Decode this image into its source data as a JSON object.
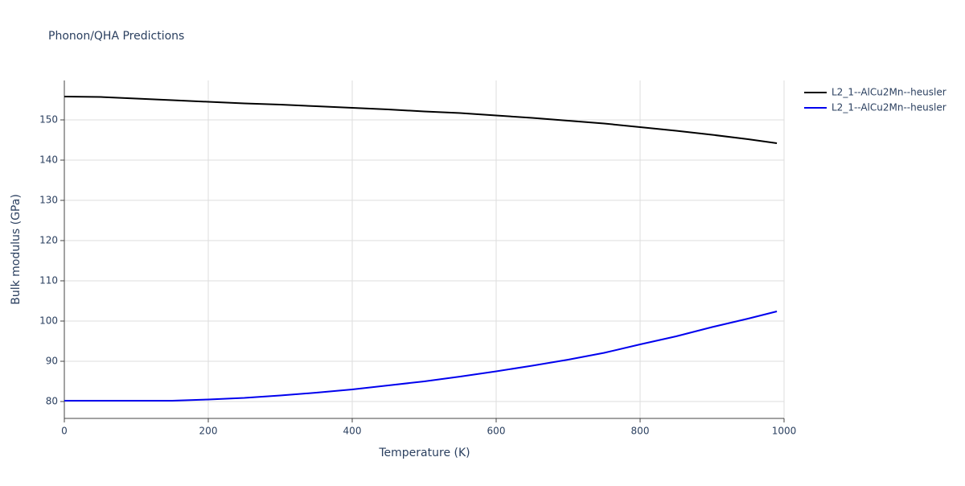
{
  "chart_data": {
    "type": "line",
    "title": "Phonon/QHA Predictions",
    "x_label": "Temperature (K)",
    "y_label": "Bulk modulus (GPa)",
    "x": [
      0,
      50,
      100,
      150,
      200,
      250,
      300,
      350,
      400,
      450,
      500,
      550,
      600,
      650,
      700,
      750,
      800,
      850,
      900,
      950,
      990
    ],
    "series": [
      {
        "name": "L2_1--AlCu2Mn--heusler",
        "color": "#000000",
        "values": [
          155.8,
          155.7,
          155.3,
          154.9,
          154.5,
          154.1,
          153.8,
          153.4,
          153.0,
          152.6,
          152.1,
          151.7,
          151.1,
          150.5,
          149.8,
          149.1,
          148.2,
          147.3,
          146.3,
          145.2,
          144.2
        ]
      },
      {
        "name": "L2_1--AlCu2Mn--heusler",
        "color": "#0000ee",
        "values": [
          80.2,
          80.2,
          80.2,
          80.2,
          80.5,
          80.9,
          81.5,
          82.2,
          83.0,
          84.0,
          85.0,
          86.2,
          87.5,
          88.9,
          90.4,
          92.1,
          94.2,
          96.2,
          98.5,
          100.6,
          102.4
        ]
      }
    ],
    "xlim": [
      0,
      1000
    ],
    "xticks": [
      0,
      200,
      400,
      600,
      800,
      1000
    ],
    "ylim": [
      75.8,
      159.8
    ],
    "yticks": [
      80,
      90,
      100,
      110,
      120,
      130,
      140,
      150
    ],
    "grid": true,
    "legend": "top-right"
  }
}
